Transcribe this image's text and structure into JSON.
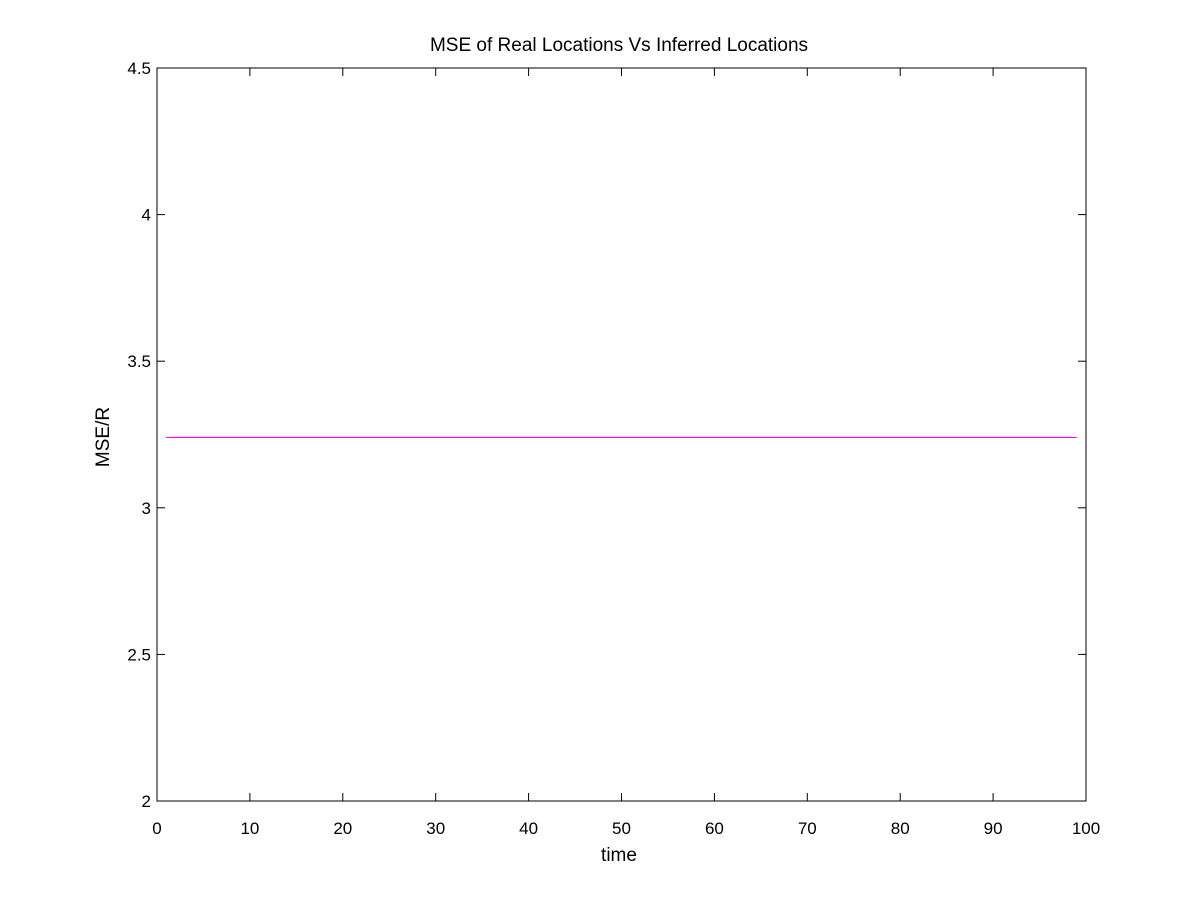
{
  "chart_data": {
    "type": "line",
    "title": "MSE of Real Locations Vs Inferred Locations",
    "xlabel": "time",
    "ylabel": "MSE/R",
    "xlim": [
      0,
      100
    ],
    "ylim": [
      2,
      4.5
    ],
    "xticks": [
      0,
      10,
      20,
      30,
      40,
      50,
      60,
      70,
      80,
      90,
      100
    ],
    "xtick_labels": [
      "0",
      "10",
      "20",
      "30",
      "40",
      "50",
      "60",
      "70",
      "80",
      "90",
      "100"
    ],
    "yticks": [
      2,
      2.5,
      3,
      3.5,
      4,
      4.5
    ],
    "ytick_labels": [
      "2",
      "2.5",
      "3",
      "3.5",
      "4",
      "4.5"
    ],
    "grid": false,
    "series": [
      {
        "color": "#ff00ff",
        "x": [
          1,
          99
        ],
        "y": [
          3.24,
          3.24
        ]
      }
    ]
  }
}
